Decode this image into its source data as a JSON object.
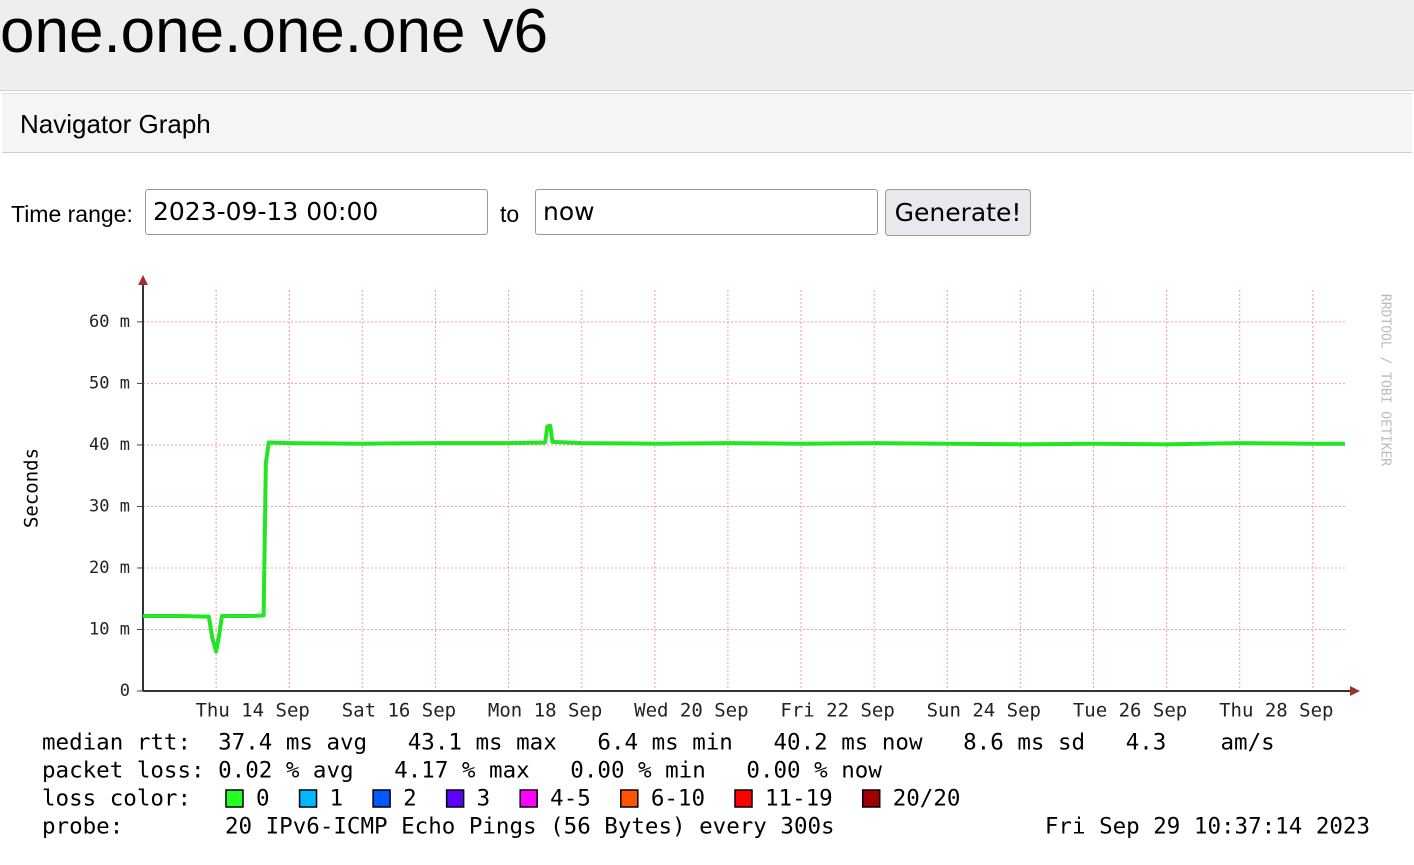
{
  "header": {
    "title": "one.one.one.one v6"
  },
  "nav": {
    "title": "Navigator Graph"
  },
  "form": {
    "label": "Time range:",
    "start": "2023-09-13 00:00",
    "separator": "to",
    "end": "now",
    "button": "Generate!"
  },
  "chart_data": {
    "type": "line",
    "y_label": "Seconds",
    "watermark": "RRDTOOL / TOBI OETIKER",
    "xlim": [
      13,
      29.44
    ],
    "ylim": [
      0,
      66
    ],
    "xticks": [
      {
        "value": 14.5,
        "label": "Thu 14 Sep"
      },
      {
        "value": 16.5,
        "label": "Sat 16 Sep"
      },
      {
        "value": 18.5,
        "label": "Mon 18 Sep"
      },
      {
        "value": 20.5,
        "label": "Wed 20 Sep"
      },
      {
        "value": 22.5,
        "label": "Fri 22 Sep"
      },
      {
        "value": 24.5,
        "label": "Sun 24 Sep"
      },
      {
        "value": 26.5,
        "label": "Tue 26 Sep"
      },
      {
        "value": 28.5,
        "label": "Thu 28 Sep"
      }
    ],
    "xgrid": [
      14,
      15,
      16,
      17,
      18,
      19,
      20,
      21,
      22,
      23,
      24,
      25,
      26,
      27,
      28,
      29
    ],
    "yticks": [
      0,
      {
        "value": 10,
        "label": "10 m"
      },
      {
        "value": 20,
        "label": "20 m"
      },
      {
        "value": 30,
        "label": "30 m"
      },
      {
        "value": 40,
        "label": "40 m"
      },
      {
        "value": 50,
        "label": "50 m"
      },
      {
        "value": 60,
        "label": "60 m"
      }
    ],
    "grid": true,
    "x": [
      13,
      13.5,
      13.9,
      13.95,
      14.0,
      14.04,
      14.08,
      14.5,
      14.65,
      14.68,
      14.72,
      15,
      16,
      17,
      18,
      18.5,
      18.53,
      18.57,
      18.6,
      19,
      20,
      21,
      22,
      23,
      24,
      25,
      26,
      27,
      28,
      29,
      29.44
    ],
    "series": [
      {
        "name": "median rtt",
        "color": "#22e622",
        "values": [
          12.2,
          12.2,
          12.1,
          8.5,
          6.4,
          9,
          12.2,
          12.2,
          12.3,
          37,
          40.4,
          40.3,
          40.2,
          40.3,
          40.3,
          40.4,
          43,
          43.1,
          40.5,
          40.3,
          40.2,
          40.3,
          40.2,
          40.3,
          40.2,
          40.1,
          40.2,
          40.1,
          40.3,
          40.2,
          40.2
        ]
      }
    ],
    "stats": [
      "median rtt:  37.4 ms avg   43.1 ms max   6.4 ms min   40.2 ms now   8.6 ms sd   4.3    am/s",
      "packet loss: 0.02 % avg   4.17 % max   0.00 % min   0.00 % now"
    ],
    "loss_label": "loss color:",
    "loss_colors": [
      {
        "name": "0",
        "color": "#26ff26"
      },
      {
        "name": "1",
        "color": "#00b8ff"
      },
      {
        "name": "2",
        "color": "#0059ff"
      },
      {
        "name": "3",
        "color": "#5e00ff"
      },
      {
        "name": "4-5",
        "color": "#ff00ff"
      },
      {
        "name": "6-10",
        "color": "#ff5500"
      },
      {
        "name": "11-19",
        "color": "#ff0000"
      },
      {
        "name": "20/20",
        "color": "#a10000"
      }
    ],
    "probe_label": "probe:",
    "probe": "20 IPv6-ICMP Echo Pings (56 Bytes) every 300s",
    "timestamp": "Fri Sep 29 10:37:14 2023"
  }
}
